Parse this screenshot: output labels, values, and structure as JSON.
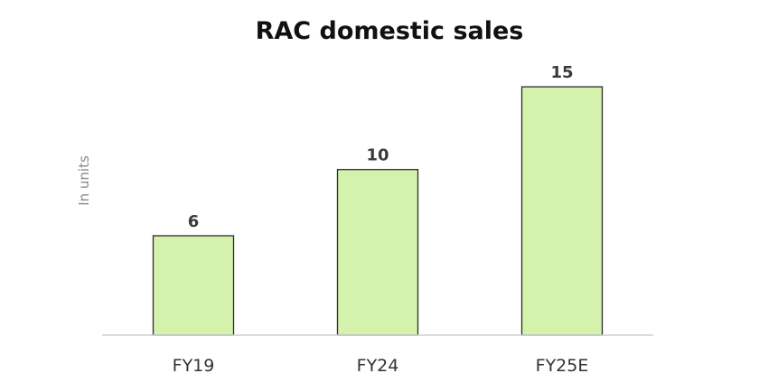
{
  "chart_data": {
    "type": "bar",
    "title": "RAC domestic sales",
    "xlabel": "",
    "ylabel": "In units",
    "categories": [
      "FY19",
      "FY24",
      "FY25E"
    ],
    "values": [
      6,
      10,
      15
    ],
    "data_labels": [
      "6",
      "10",
      "15"
    ],
    "ylim": [
      0,
      16
    ],
    "grid": false,
    "legend": "none",
    "colors": {
      "bar_fill": "#d5f2ad",
      "bar_stroke": "#2b2b2b",
      "axis_line": "#d0d0d0"
    }
  }
}
